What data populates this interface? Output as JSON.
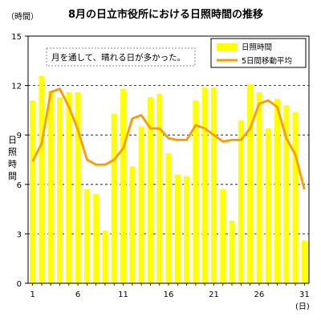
{
  "chart_data": {
    "type": "bar",
    "title": "8月の日立市役所における日照時間の推移",
    "ylabel_unit": "（時間）",
    "ylabel": "日照時間",
    "xlabel_unit": "(日)",
    "annotation": "月を通して、晴れる日が多かった。",
    "ylim": [
      0,
      15
    ],
    "yticks": [
      0,
      3,
      6,
      9,
      12,
      15
    ],
    "xtick_days": [
      1,
      6,
      11,
      16,
      21,
      26,
      31
    ],
    "grid": "horizontal dashed",
    "legend_position": "top-right",
    "days": [
      1,
      2,
      3,
      4,
      5,
      6,
      7,
      8,
      9,
      10,
      11,
      12,
      13,
      14,
      15,
      16,
      17,
      18,
      19,
      20,
      21,
      22,
      23,
      24,
      25,
      26,
      27,
      28,
      29,
      30,
      31
    ],
    "series": [
      {
        "name": "日照時間",
        "kind": "bar",
        "color": "#ffff00",
        "values": [
          11.1,
          12.6,
          11.7,
          11.3,
          11.6,
          11.6,
          5.7,
          5.4,
          3.2,
          10.3,
          11.8,
          7.1,
          9.5,
          11.3,
          11.5,
          7.9,
          6.6,
          6.5,
          11.1,
          11.9,
          11.9,
          5.7,
          3.8,
          9.9,
          12.1,
          11.6,
          9.4,
          11.2,
          10.8,
          10.4,
          2.6
        ]
      },
      {
        "name": "5日間移動平均",
        "kind": "line",
        "color": "#ff9900",
        "values": [
          7.4,
          8.5,
          11.6,
          11.8,
          10.7,
          9.3,
          7.5,
          7.2,
          7.2,
          7.5,
          8.2,
          10.0,
          10.2,
          9.4,
          9.4,
          8.8,
          8.7,
          8.7,
          9.6,
          9.4,
          9.0,
          8.6,
          8.7,
          8.7,
          9.4,
          10.9,
          11.1,
          10.7,
          8.8,
          7.8,
          5.7
        ]
      }
    ]
  }
}
